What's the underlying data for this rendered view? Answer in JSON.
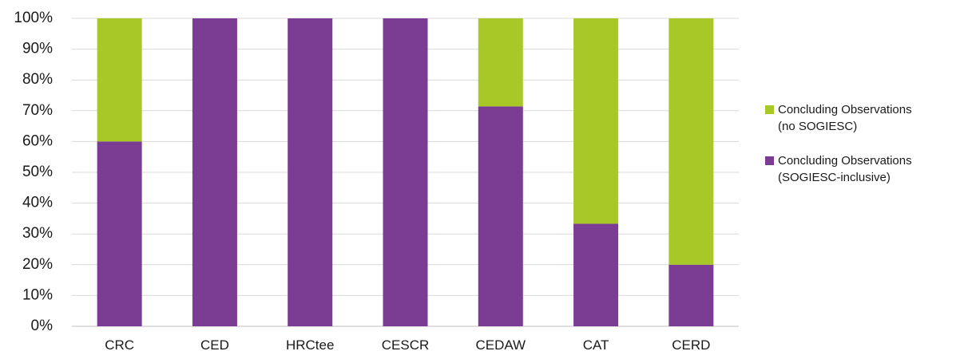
{
  "chart_data": {
    "type": "bar",
    "stacked": true,
    "categories": [
      "CRC",
      "CED",
      "HRCtee",
      "CESCR",
      "CEDAW",
      "CAT",
      "CERD"
    ],
    "series": [
      {
        "name": "Concluding Observations (SOGIESC-inclusive)",
        "legend_lines": [
          "Concluding Observations",
          "(SOGIESC-inclusive)"
        ],
        "color": "#7b3c94",
        "values": [
          60,
          100,
          100,
          100,
          71.4,
          33.3,
          20
        ]
      },
      {
        "name": "Concluding Observations (no SOGIESC)",
        "legend_lines": [
          "Concluding Observations",
          "(no SOGIESC)"
        ],
        "color": "#a7c827",
        "values": [
          40,
          0,
          0,
          0,
          28.6,
          66.7,
          80
        ]
      }
    ],
    "ylim": [
      0,
      100
    ],
    "yticks": [
      "0%",
      "10%",
      "20%",
      "30%",
      "40%",
      "50%",
      "60%",
      "70%",
      "80%",
      "90%",
      "100%"
    ],
    "grid": true,
    "legend_position": "right"
  }
}
